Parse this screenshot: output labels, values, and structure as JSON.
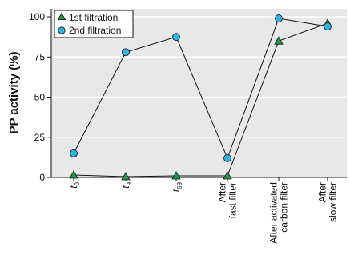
{
  "chart_data": {
    "type": "line",
    "ylabel": "PP activity (%)",
    "xlabel": "",
    "ylim": [
      0,
      105
    ],
    "yticks": [
      0,
      25,
      50,
      75,
      100
    ],
    "grid": true,
    "legend_position": "top-left",
    "categories": [
      {
        "main": "t",
        "sub": "0",
        "lines": []
      },
      {
        "main": "t",
        "sub": "9",
        "lines": []
      },
      {
        "main": "t",
        "sub": "69",
        "lines": []
      },
      {
        "main": "",
        "sub": "",
        "lines": [
          "After",
          "fast filter"
        ]
      },
      {
        "main": "",
        "sub": "",
        "lines": [
          "After activated",
          "carbon filter"
        ]
      },
      {
        "main": "",
        "sub": "",
        "lines": [
          "After",
          "slow filter"
        ]
      }
    ],
    "series": [
      {
        "name": "1st filtration",
        "marker": "triangle",
        "color": "#1e9a4c",
        "values": [
          1.5,
          0.5,
          1,
          1,
          85,
          96
        ]
      },
      {
        "name": "2nd filtration",
        "marker": "circle",
        "color": "#2cb5e6",
        "values": [
          15,
          78,
          87.5,
          12,
          99,
          94
        ]
      }
    ],
    "colors": {
      "plot_background": "#e8e8e8",
      "gridline": "#ffffff",
      "line": "#111111"
    }
  }
}
